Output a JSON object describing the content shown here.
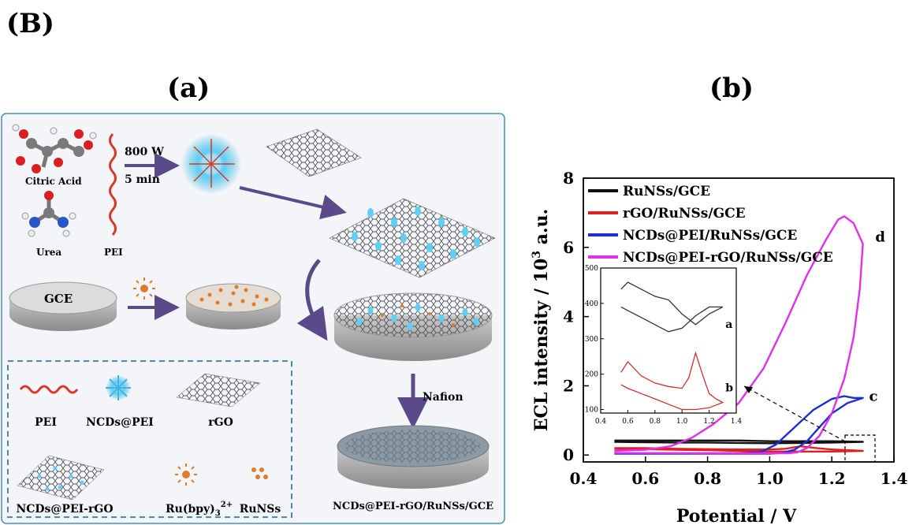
{
  "figure_label": "(B)",
  "panel_a": {
    "label": "(a)",
    "citric_acid": "Citric Acid",
    "urea": "Urea",
    "pei": "PEI",
    "power": "800 W",
    "time": "5 min",
    "gce": "GCE",
    "nafion": "Nafion",
    "final_electrode": "NCDs@PEI-rGO/RuNSs/GCE",
    "legend": {
      "pei": "PEI",
      "ncds_pei": "NCDs@PEI",
      "rgo": "rGO",
      "ncds_pei_rgo": "NCDs@PEI-rGO",
      "ru_bpy": "Ru(bpy)",
      "ru_bpy_sub": "3",
      "ru_bpy_sup": "2+",
      "runss": "RuNSs"
    },
    "colors": {
      "pei": "#d63a2a",
      "ncd": "#3fb4e0",
      "ru": "#e07b2a",
      "arrow": "#5a4a8a",
      "frame": "#4a8ab8"
    }
  },
  "panel_b": {
    "label": "(b)"
  },
  "chart_data": {
    "type": "line",
    "xlabel": "Potential / V",
    "ylabel": "ECL intensity / 10",
    "ylabel_sup": "3",
    "ylabel_unit": " a.u.",
    "xlim": [
      0.4,
      1.4
    ],
    "ylim": [
      -0.2,
      8
    ],
    "xticks": [
      "0.4",
      "0.6",
      "0.8",
      "1.0",
      "1.2",
      "1.4"
    ],
    "yticks": [
      "0",
      "2",
      "4",
      "6",
      "8"
    ],
    "legend_position": "top-left",
    "series": [
      {
        "name": "RuNSs/GCE",
        "label": "a",
        "color": "#111111",
        "x": [
          0.5,
          0.6,
          0.7,
          0.8,
          0.9,
          1.0,
          1.1,
          1.2,
          1.3,
          1.2,
          1.1,
          1.0,
          0.9,
          0.8,
          0.7,
          0.6,
          0.5
        ],
        "y": [
          0.42,
          0.42,
          0.42,
          0.42,
          0.42,
          0.4,
          0.4,
          0.4,
          0.38,
          0.36,
          0.35,
          0.34,
          0.35,
          0.36,
          0.36,
          0.37,
          0.38
        ]
      },
      {
        "name": "rGO/RuNSs/GCE",
        "label": "b",
        "color": "#e02020",
        "x": [
          0.5,
          0.6,
          0.7,
          0.8,
          0.9,
          1.0,
          1.05,
          1.1,
          1.15,
          1.2,
          1.25,
          1.3,
          1.2,
          1.1,
          1.0,
          0.9,
          0.8,
          0.7,
          0.6,
          0.5
        ],
        "y": [
          0.2,
          0.2,
          0.18,
          0.17,
          0.16,
          0.16,
          0.18,
          0.25,
          0.2,
          0.16,
          0.14,
          0.12,
          0.1,
          0.1,
          0.1,
          0.12,
          0.14,
          0.15,
          0.17,
          0.18
        ]
      },
      {
        "name": "NCDs@PEI/RuNSs/GCE",
        "label": "c",
        "color": "#1a2fd6",
        "x": [
          0.5,
          0.7,
          0.9,
          0.97,
          1.02,
          1.08,
          1.14,
          1.2,
          1.24,
          1.27,
          1.3,
          1.25,
          1.2,
          1.16,
          1.12,
          1.08,
          1.04,
          1.0,
          0.9,
          0.7,
          0.5
        ],
        "y": [
          0.05,
          0.05,
          0.05,
          0.08,
          0.3,
          0.8,
          1.3,
          1.62,
          1.7,
          1.65,
          1.65,
          1.5,
          1.2,
          0.8,
          0.4,
          0.15,
          0.06,
          0.04,
          0.04,
          0.04,
          0.04
        ]
      },
      {
        "name": "NCDs@PEI-rGO/RuNSs/GCE",
        "label": "d",
        "color": "#e030e8",
        "x": [
          0.5,
          0.6,
          0.68,
          0.75,
          0.82,
          0.9,
          0.98,
          1.05,
          1.12,
          1.18,
          1.22,
          1.24,
          1.27,
          1.3,
          1.29,
          1.27,
          1.24,
          1.2,
          1.16,
          1.12,
          1.09,
          1.06,
          1.0,
          0.8,
          0.5
        ],
        "y": [
          0.12,
          0.15,
          0.25,
          0.5,
          0.9,
          1.5,
          2.5,
          3.8,
          5.2,
          6.2,
          6.8,
          6.9,
          6.7,
          6.1,
          4.8,
          3.4,
          2.2,
          1.2,
          0.55,
          0.2,
          0.08,
          0.05,
          0.05,
          0.05,
          0.06
        ]
      }
    ],
    "inset": {
      "xlim": [
        0.4,
        1.4
      ],
      "ylim": [
        90,
        500
      ],
      "xticks": [
        "0.4",
        "0.6",
        "0.8",
        "1.0",
        "1.2",
        "1.4"
      ],
      "yticks": [
        "100",
        "200",
        "300",
        "400",
        "500"
      ],
      "series": [
        {
          "label": "a",
          "color": "#333333",
          "x": [
            0.55,
            0.6,
            0.7,
            0.8,
            0.9,
            1.0,
            1.1,
            1.2,
            1.3,
            1.2,
            1.1,
            1.0,
            0.9,
            0.8,
            0.7,
            0.6,
            0.55
          ],
          "y": [
            440,
            460,
            440,
            420,
            410,
            370,
            340,
            370,
            390,
            390,
            365,
            330,
            320,
            340,
            360,
            380,
            390
          ]
        },
        {
          "label": "b",
          "color": "#d03030",
          "x": [
            0.55,
            0.6,
            0.7,
            0.8,
            0.9,
            1.0,
            1.05,
            1.1,
            1.15,
            1.2,
            1.25,
            1.3,
            1.2,
            1.1,
            1.0,
            0.9,
            0.8,
            0.7,
            0.6,
            0.55
          ],
          "y": [
            205,
            235,
            195,
            175,
            165,
            160,
            190,
            260,
            200,
            145,
            130,
            120,
            105,
            100,
            100,
            115,
            130,
            145,
            160,
            170
          ]
        }
      ]
    }
  }
}
